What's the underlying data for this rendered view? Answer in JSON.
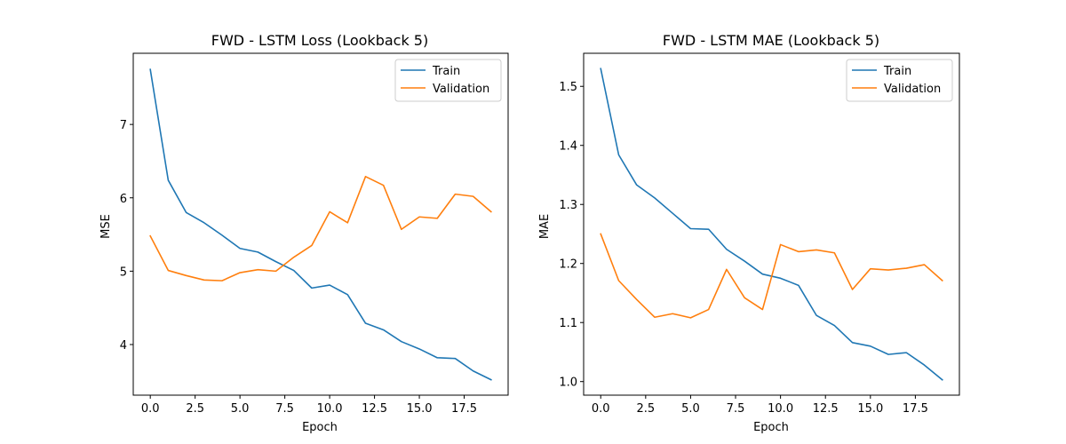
{
  "chart_data": [
    {
      "type": "line",
      "title": "FWD - LSTM Loss (Lookback 5)",
      "xlabel": "Epoch",
      "ylabel": "MSE",
      "x": [
        0,
        1,
        2,
        3,
        4,
        5,
        6,
        7,
        8,
        9,
        10,
        11,
        12,
        13,
        14,
        15,
        16,
        17,
        18,
        19
      ],
      "xlim": [
        -0.95,
        19.95
      ],
      "ylim": [
        3.31,
        7.97
      ],
      "xticks": [
        0,
        2.5,
        5,
        7.5,
        10,
        12.5,
        15,
        17.5
      ],
      "xtick_labels": [
        "0.0",
        "2.5",
        "5.0",
        "7.5",
        "10.0",
        "12.5",
        "15.0",
        "17.5"
      ],
      "yticks": [
        4,
        5,
        6,
        7
      ],
      "ytick_labels": [
        "4",
        "5",
        "6",
        "7"
      ],
      "grid": false,
      "legend_position": "top-right",
      "series": [
        {
          "name": "Train",
          "color": "#1f77b4",
          "values": [
            7.75,
            6.24,
            5.8,
            5.66,
            5.49,
            5.31,
            5.26,
            5.13,
            5.01,
            4.77,
            4.81,
            4.68,
            4.29,
            4.2,
            4.04,
            3.94,
            3.82,
            3.81,
            3.64,
            3.52
          ]
        },
        {
          "name": "Validation",
          "color": "#ff7f0e",
          "values": [
            5.48,
            5.01,
            4.94,
            4.88,
            4.87,
            4.98,
            5.02,
            5.0,
            5.19,
            5.35,
            5.81,
            5.66,
            6.29,
            6.17,
            5.57,
            5.74,
            5.72,
            6.05,
            6.02,
            5.81
          ]
        }
      ]
    },
    {
      "type": "line",
      "title": "FWD - LSTM MAE (Lookback 5)",
      "xlabel": "Epoch",
      "ylabel": "MAE",
      "x": [
        0,
        1,
        2,
        3,
        4,
        5,
        6,
        7,
        8,
        9,
        10,
        11,
        12,
        13,
        14,
        15,
        16,
        17,
        18,
        19
      ],
      "xlim": [
        -0.95,
        19.95
      ],
      "ylim": [
        0.977,
        1.556
      ],
      "xticks": [
        0,
        2.5,
        5,
        7.5,
        10,
        12.5,
        15,
        17.5
      ],
      "xtick_labels": [
        "0.0",
        "2.5",
        "5.0",
        "7.5",
        "10.0",
        "12.5",
        "15.0",
        "17.5"
      ],
      "yticks": [
        1.0,
        1.1,
        1.2,
        1.3,
        1.4,
        1.5
      ],
      "ytick_labels": [
        "1.0",
        "1.1",
        "1.2",
        "1.3",
        "1.4",
        "1.5"
      ],
      "grid": false,
      "legend_position": "top-right",
      "series": [
        {
          "name": "Train",
          "color": "#1f77b4",
          "values": [
            1.53,
            1.384,
            1.333,
            1.311,
            1.285,
            1.259,
            1.258,
            1.224,
            1.204,
            1.182,
            1.175,
            1.163,
            1.112,
            1.095,
            1.066,
            1.06,
            1.046,
            1.049,
            1.028,
            1.003
          ]
        },
        {
          "name": "Validation",
          "color": "#ff7f0e",
          "values": [
            1.25,
            1.171,
            1.139,
            1.109,
            1.115,
            1.108,
            1.122,
            1.19,
            1.142,
            1.122,
            1.232,
            1.22,
            1.223,
            1.218,
            1.156,
            1.191,
            1.189,
            1.192,
            1.198,
            1.171
          ]
        }
      ]
    }
  ]
}
